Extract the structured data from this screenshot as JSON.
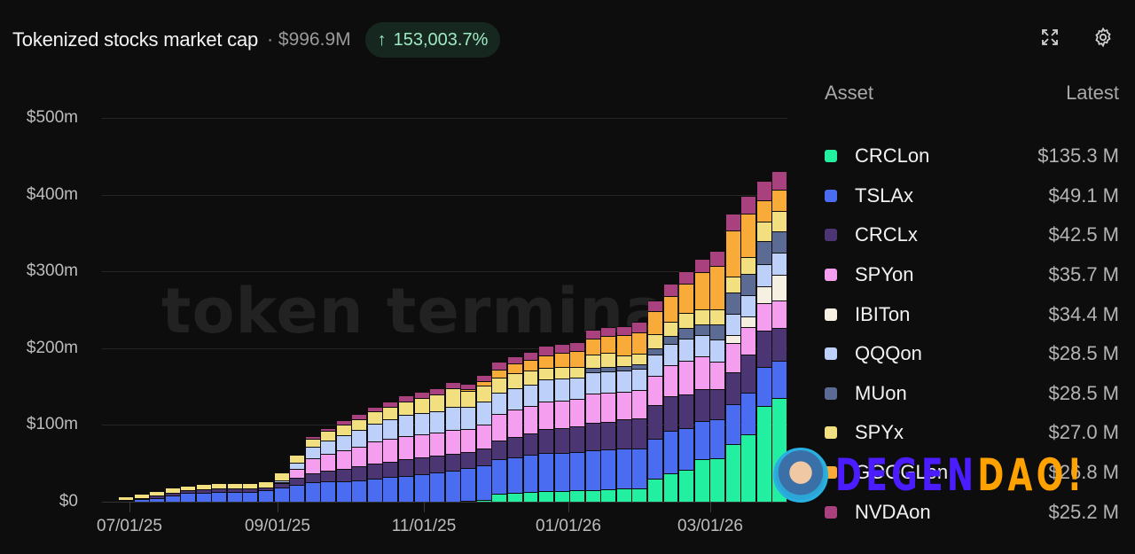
{
  "header": {
    "title": "Tokenized stocks market cap",
    "total": "· $996.9M",
    "change_arrow": "↑",
    "change_pct": "153,003.7%",
    "change_color": "#9ee8c2"
  },
  "toolbar": {
    "expand_icon": "expand-icon",
    "settings_icon": "gear-icon"
  },
  "watermark": "token terminal",
  "legend": {
    "col_asset": "Asset",
    "col_latest": "Latest",
    "items": [
      {
        "name": "CRCLon",
        "value": "$135.3 M",
        "color": "#22f0a0"
      },
      {
        "name": "TSLAx",
        "value": "$49.1 M",
        "color": "#4a6cf0"
      },
      {
        "name": "CRCLx",
        "value": "$42.5 M",
        "color": "#4b3572"
      },
      {
        "name": "SPYon",
        "value": "$35.7 M",
        "color": "#f59ef0"
      },
      {
        "name": "IBITon",
        "value": "$34.4 M",
        "color": "#f6f0e2"
      },
      {
        "name": "QQQon",
        "value": "$28.5 M",
        "color": "#bcd0fa"
      },
      {
        "name": "MUon",
        "value": "$28.5 M",
        "color": "#5c6b94"
      },
      {
        "name": "SPYx",
        "value": "$27.0 M",
        "color": "#f2e080"
      },
      {
        "name": "GOOGLon",
        "value": "$26.8 M",
        "color": "#f9ab3a"
      },
      {
        "name": "NVDAon",
        "value": "$25.2 M",
        "color": "#a9417e"
      }
    ]
  },
  "overlay": {
    "brand_part1": "DEGEN",
    "brand_part2": "DAO!"
  },
  "chart_data": {
    "type": "bar",
    "stacked": true,
    "title": "Tokenized stocks market cap",
    "xlabel": "",
    "ylabel": "",
    "ylim": [
      0,
      500
    ],
    "y_ticks": [
      "$0",
      "$100m",
      "$200m",
      "$300m",
      "$400m",
      "$500m"
    ],
    "y_tick_values": [
      0,
      100,
      200,
      300,
      400,
      500
    ],
    "x_ticks": [
      "07/01/25",
      "09/01/25",
      "11/01/25",
      "01/01/26",
      "03/01/26"
    ],
    "x_tick_bar_index": [
      0.5,
      9.3,
      18.3,
      26.8,
      35.2
    ],
    "grid": true,
    "legend_position": "right",
    "series_order_bottom_to_top": [
      "CRCLon",
      "TSLAx",
      "CRCLx",
      "SPYon",
      "IBITon",
      "QQQon",
      "MUon",
      "SPYx",
      "GOOGLon",
      "NVDAon"
    ],
    "series": [
      {
        "name": "CRCLon",
        "values": [
          0,
          0,
          0,
          0,
          0,
          0,
          0,
          0,
          0,
          0,
          0,
          0,
          0,
          0,
          0,
          0,
          0,
          0,
          0,
          0,
          0,
          0,
          1,
          2,
          10,
          12,
          13,
          14,
          14,
          15,
          15,
          16,
          17,
          17,
          30,
          37,
          42,
          55,
          57,
          75,
          88,
          125,
          135
        ]
      },
      {
        "name": "TSLAx",
        "values": [
          1,
          3,
          5,
          8,
          11,
          12,
          13,
          13,
          13,
          15,
          18,
          22,
          25,
          26,
          27,
          28,
          30,
          32,
          34,
          36,
          38,
          40,
          43,
          45,
          46,
          46,
          48,
          49,
          50,
          50,
          52,
          52,
          52,
          52,
          52,
          55,
          54,
          50,
          50,
          52,
          54,
          50,
          49
        ]
      },
      {
        "name": "CRCLx",
        "values": [
          1,
          2,
          3,
          4,
          4,
          4,
          4,
          4,
          4,
          4,
          6,
          9,
          12,
          14,
          16,
          18,
          20,
          20,
          22,
          22,
          22,
          22,
          20,
          22,
          24,
          26,
          28,
          32,
          32,
          33,
          36,
          36,
          38,
          40,
          44,
          46,
          44,
          42,
          40,
          42,
          50,
          48,
          42
        ]
      },
      {
        "name": "SPYon",
        "values": [
          0,
          0,
          0,
          0,
          0,
          0,
          0,
          0,
          0,
          0,
          2,
          12,
          20,
          22,
          24,
          26,
          28,
          30,
          30,
          30,
          30,
          32,
          30,
          32,
          34,
          36,
          36,
          36,
          36,
          36,
          38,
          38,
          36,
          36,
          38,
          40,
          44,
          42,
          36,
          38,
          35,
          36,
          36
        ]
      },
      {
        "name": "IBITon",
        "values": [
          0,
          0,
          0,
          0,
          0,
          0,
          0,
          0,
          0,
          0,
          0,
          0,
          0,
          0,
          0,
          0,
          0,
          0,
          0,
          0,
          0,
          0,
          0,
          0,
          0,
          0,
          0,
          0,
          0,
          0,
          0,
          0,
          0,
          0,
          0,
          0,
          0,
          0,
          0,
          10,
          14,
          22,
          34
        ]
      },
      {
        "name": "QQQon",
        "values": [
          0,
          0,
          0,
          0,
          0,
          0,
          0,
          0,
          0,
          0,
          2,
          8,
          15,
          18,
          20,
          22,
          24,
          26,
          27,
          27,
          28,
          30,
          30,
          30,
          28,
          28,
          28,
          28,
          28,
          28,
          28,
          28,
          28,
          28,
          28,
          28,
          28,
          28,
          28,
          28,
          28,
          28,
          28
        ]
      },
      {
        "name": "MUon",
        "values": [
          0,
          0,
          0,
          0,
          0,
          0,
          0,
          0,
          0,
          0,
          0,
          0,
          0,
          0,
          0,
          0,
          0,
          0,
          0,
          0,
          0,
          0,
          0,
          0,
          0,
          0,
          0,
          0,
          0,
          0,
          5,
          6,
          6,
          6,
          8,
          10,
          14,
          14,
          20,
          28,
          28,
          30,
          28
        ]
      },
      {
        "name": "SPYx",
        "values": [
          5,
          6,
          6,
          6,
          6,
          7,
          7,
          7,
          7,
          8,
          10,
          10,
          10,
          12,
          14,
          14,
          16,
          16,
          18,
          20,
          22,
          24,
          20,
          20,
          20,
          20,
          18,
          16,
          16,
          14,
          18,
          18,
          14,
          14,
          18,
          18,
          20,
          20,
          20,
          20,
          22,
          26,
          27
        ]
      },
      {
        "name": "GOOGLon",
        "values": [
          0,
          0,
          0,
          0,
          0,
          0,
          0,
          0,
          0,
          0,
          0,
          0,
          0,
          0,
          0,
          0,
          0,
          0,
          0,
          0,
          0,
          0,
          3,
          6,
          10,
          12,
          14,
          16,
          18,
          20,
          20,
          22,
          26,
          28,
          30,
          34,
          38,
          48,
          56,
          60,
          56,
          28,
          27
        ]
      },
      {
        "name": "NVDAon",
        "values": [
          0,
          0,
          0,
          0,
          0,
          0,
          0,
          0,
          0,
          0,
          0,
          0,
          3,
          4,
          5,
          6,
          6,
          6,
          8,
          8,
          8,
          8,
          6,
          8,
          10,
          10,
          10,
          12,
          12,
          12,
          12,
          12,
          12,
          14,
          14,
          16,
          16,
          18,
          20,
          22,
          24,
          25,
          25
        ]
      }
    ]
  }
}
